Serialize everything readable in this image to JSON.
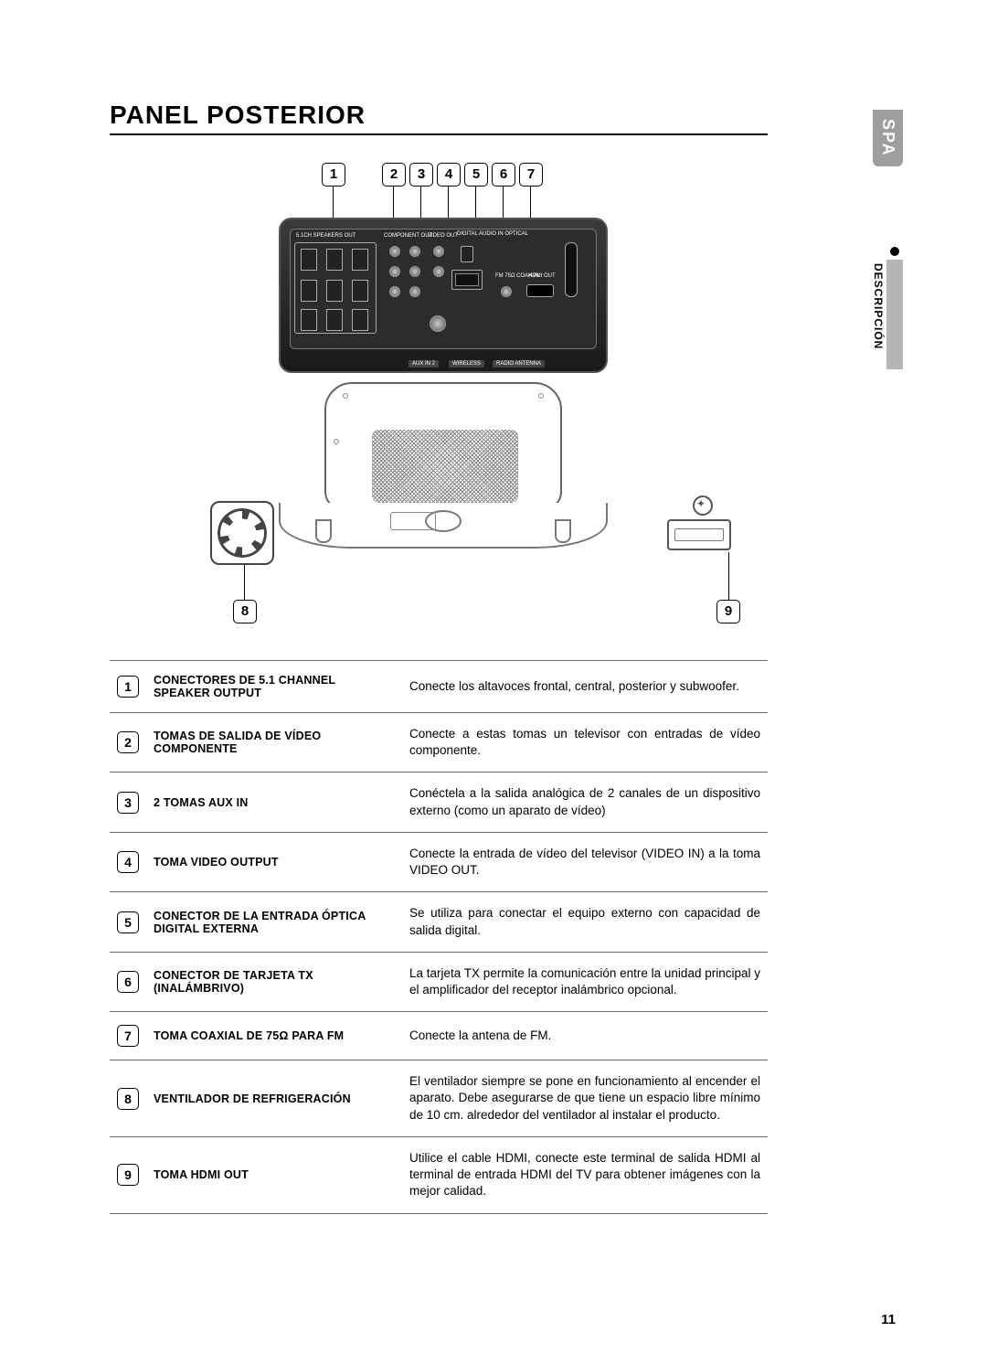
{
  "heading": "PANEL POSTERIOR",
  "side_tab": "SPA",
  "side_section": "DESCRIPCIÓN",
  "page_number": "11",
  "diagram_labels": {
    "speakers_out": "5.1CH SPEAKERS OUT",
    "component_out": "COMPONENT OUT",
    "video_out": "VIDEO OUT",
    "digital_audio_in": "DIGITAL AUDIO IN\nOPTICAL",
    "hdmi_out": "HDMI OUT",
    "fm_coax": "FM 75Ω\nCOAXIAL",
    "aux_in_2": "AUX IN 2",
    "wireless": "WIRELESS",
    "radio_antenna": "RADIO ANTENNA"
  },
  "callouts": [
    "1",
    "2",
    "3",
    "4",
    "5",
    "6",
    "7",
    "8",
    "9"
  ],
  "table": [
    {
      "num": "1",
      "name": "CONECTORES DE 5.1 CHANNEL SPEAKER OUTPUT",
      "desc": "Conecte los altavoces frontal, central, posterior y subwoofer."
    },
    {
      "num": "2",
      "name": "TOMAS DE SALIDA DE VÍDEO COMPONENTE",
      "desc": "Conecte a estas tomas un televisor con entradas de vídeo componente."
    },
    {
      "num": "3",
      "name": "2 TOMAS AUX IN",
      "desc": "Conéctela a la salida analógica de 2 canales de un dispositivo externo (como un aparato de vídeo)"
    },
    {
      "num": "4",
      "name": "TOMA VIDEO OUTPUT",
      "desc": "Conecte la entrada de vídeo del televisor (VIDEO IN) a la toma VIDEO OUT."
    },
    {
      "num": "5",
      "name": "CONECTOR DE LA ENTRADA ÓPTICA DIGITAL EXTERNA",
      "desc": "Se utiliza para conectar el equipo externo con capacidad de salida digital."
    },
    {
      "num": "6",
      "name": "CONECTOR DE TARJETA TX (INALÁMBRIVO)",
      "desc": "La tarjeta TX permite la comunicación entre la unidad principal y el amplificador del receptor inalámbrico opcional."
    },
    {
      "num": "7",
      "name": "TOMA COAXIAL DE 75Ω PARA FM",
      "desc": "Conecte la antena de FM."
    },
    {
      "num": "8",
      "name": "VENTILADOR DE REFRIGERACIÓN",
      "desc": "El ventilador siempre se pone en funcionamiento al encender el aparato. Debe asegurarse de que tiene un espacio libre mínimo de 10 cm. alrededor del ventilador al instalar el producto."
    },
    {
      "num": "9",
      "name": "TOMA HDMI OUT",
      "desc": "Utilice el cable HDMI, conecte este terminal de salida HDMI al terminal de entrada HDMI del TV para obtener imágenes con la mejor calidad."
    }
  ],
  "colors": {
    "border": "#666666",
    "device_bg": "#2c2c2c"
  }
}
